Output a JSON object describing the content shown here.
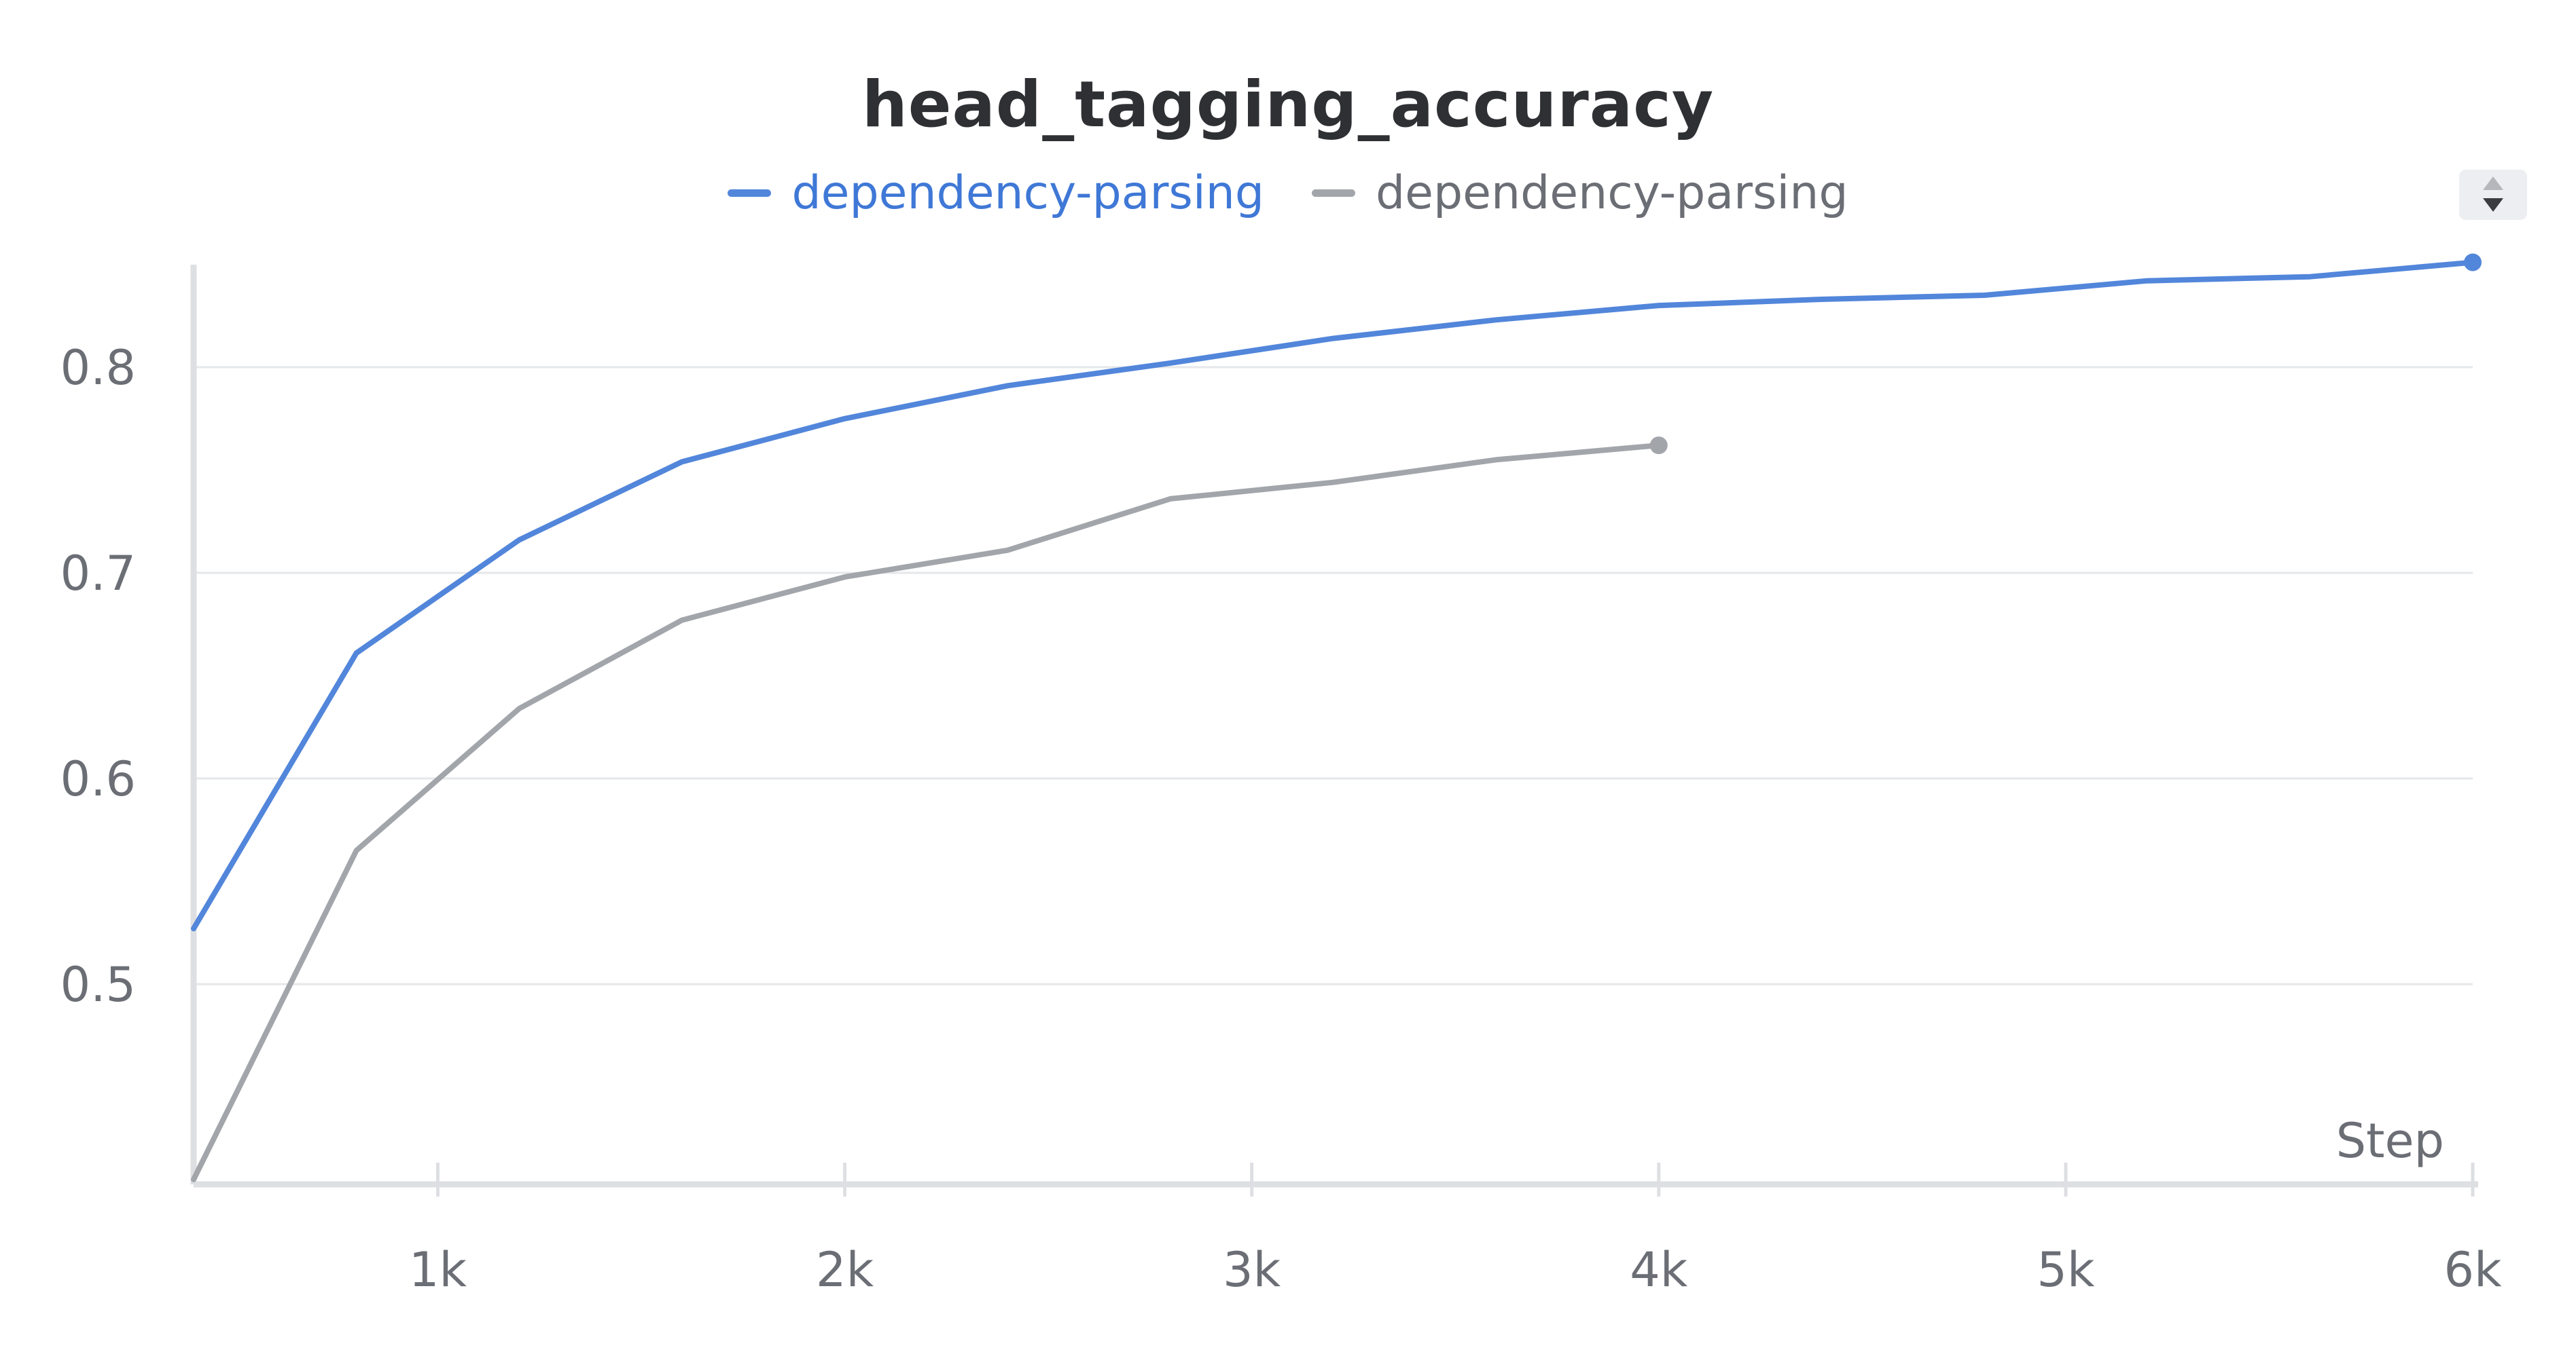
{
  "chart_data": {
    "type": "line",
    "title": "head_tagging_accuracy",
    "xlabel": "Step",
    "ylabel": "",
    "xlim": [
      400,
      6000
    ],
    "ylim": [
      0.405,
      0.86
    ],
    "x_ticks": [
      1000,
      2000,
      3000,
      4000,
      5000,
      6000
    ],
    "x_tick_labels": [
      "1k",
      "2k",
      "3k",
      "4k",
      "5k",
      "6k"
    ],
    "y_ticks": [
      0.5,
      0.6,
      0.7,
      0.8
    ],
    "y_tick_labels": [
      "0.5",
      "0.6",
      "0.7",
      "0.8"
    ],
    "grid": "horizontal",
    "legend_position": "top-center",
    "series": [
      {
        "name": "dependency-parsing",
        "color": "#5286db",
        "x": [
          400,
          800,
          1200,
          1600,
          2000,
          2400,
          2800,
          3200,
          3600,
          4000,
          4400,
          4800,
          5200,
          5600,
          6000
        ],
        "y": [
          0.527,
          0.661,
          0.716,
          0.754,
          0.775,
          0.791,
          0.802,
          0.814,
          0.823,
          0.83,
          0.833,
          0.835,
          0.842,
          0.844,
          0.851
        ]
      },
      {
        "name": "dependency-parsing",
        "color": "#a2a6ab",
        "x": [
          400,
          800,
          1200,
          1600,
          2000,
          2400,
          2800,
          3200,
          3600,
          4000
        ],
        "y": [
          0.405,
          0.565,
          0.634,
          0.677,
          0.698,
          0.711,
          0.736,
          0.744,
          0.755,
          0.762
        ]
      }
    ]
  },
  "controls": {
    "sort_icon": "sort-up-down-icon"
  }
}
